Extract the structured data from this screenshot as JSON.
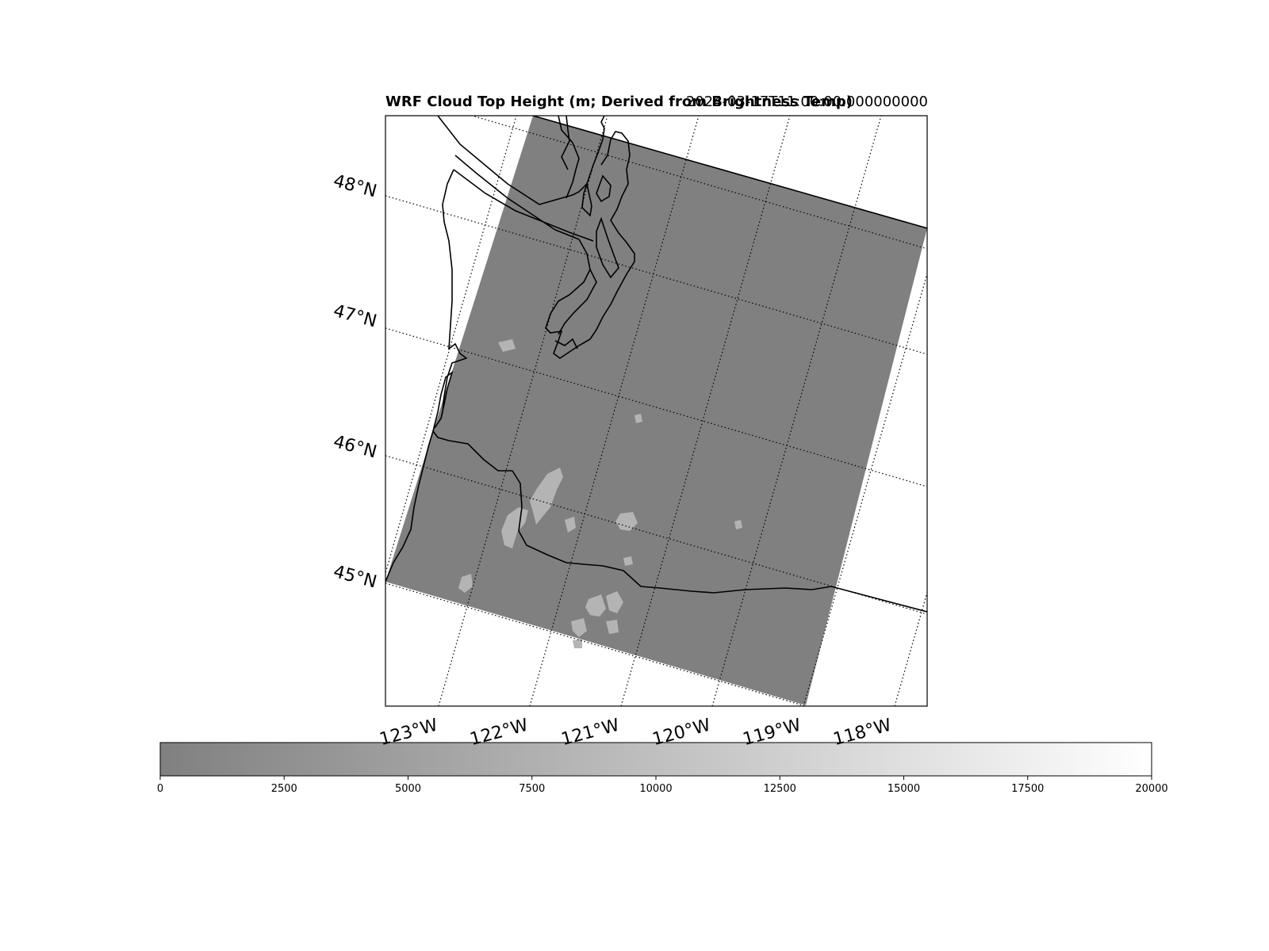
{
  "map": {
    "title": "WRF Cloud Top Height (m; Derived from Brightness Temp)",
    "valid_time": "2024-03-17T11:00:00.000000000",
    "lat_labels": [
      "48°N",
      "47°N",
      "46°N",
      "45°N"
    ],
    "lon_labels": [
      "123°W",
      "122°W",
      "121°W",
      "120°W",
      "119°W",
      "118°W"
    ],
    "colormap": "Greys",
    "colorbar": {
      "min": 0,
      "max": 20000,
      "ticks": [
        "0",
        "2500",
        "5000",
        "7500",
        "10000",
        "12500",
        "15000",
        "17500",
        "20000"
      ],
      "orientation": "horizontal",
      "start_color": "#808080",
      "end_color": "#ffffff"
    },
    "field_color": "#808080",
    "cloud_patch_color": "#b4b4b4",
    "coastline_color": "#000000"
  }
}
